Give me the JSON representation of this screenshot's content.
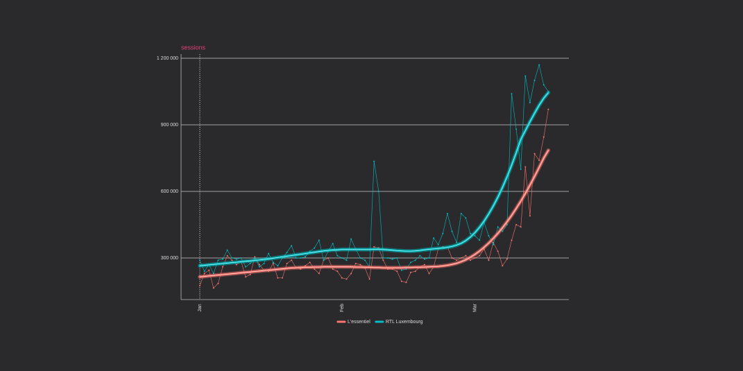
{
  "chart_data": {
    "type": "line",
    "y_label": "sessions",
    "categories": [
      "Jan",
      null,
      null,
      null,
      null,
      null,
      null,
      null,
      null,
      null,
      null,
      null,
      null,
      null,
      null,
      null,
      null,
      null,
      null,
      null,
      null,
      null,
      null,
      null,
      null,
      null,
      null,
      null,
      null,
      null,
      null,
      "Feb",
      null,
      null,
      null,
      null,
      null,
      null,
      null,
      null,
      null,
      null,
      null,
      null,
      null,
      null,
      null,
      null,
      null,
      null,
      null,
      null,
      null,
      null,
      null,
      null,
      null,
      null,
      null,
      null,
      "Mar",
      null,
      null,
      null,
      null,
      null,
      null,
      null,
      null,
      null,
      null,
      null,
      null,
      null,
      null,
      null,
      null
    ],
    "ylim": [
      112500,
      1218750
    ],
    "yticks": [
      {
        "value": 300000,
        "label": "300 000"
      },
      {
        "value": 600000,
        "label": "600 000"
      },
      {
        "value": 900000,
        "label": "900 000"
      },
      {
        "value": 1200000,
        "label": "1 200 000"
      }
    ],
    "grid": true,
    "legend": "bottom",
    "series": [
      {
        "name": "L'essentiel",
        "color": "#f8766d",
        "values": [
          175000,
          230000,
          245000,
          165000,
          185000,
          260000,
          310000,
          290000,
          270000,
          285000,
          215000,
          225000,
          305000,
          270000,
          245000,
          240000,
          275000,
          210000,
          210000,
          275000,
          290000,
          255000,
          250000,
          265000,
          280000,
          250000,
          230000,
          290000,
          300000,
          250000,
          240000,
          210000,
          205000,
          230000,
          275000,
          270000,
          255000,
          205000,
          350000,
          345000,
          290000,
          250000,
          250000,
          240000,
          195000,
          190000,
          235000,
          240000,
          260000,
          270000,
          230000,
          260000,
          340000,
          350000,
          350000,
          300000,
          290000,
          300000,
          310000,
          290000,
          300000,
          310000,
          340000,
          290000,
          370000,
          330000,
          265000,
          295000,
          380000,
          450000,
          440000,
          710000,
          490000,
          770000,
          740000,
          845000,
          970000
        ],
        "trend": [
          215000,
          217000,
          219000,
          221000,
          223000,
          225000,
          227000,
          229000,
          231000,
          233000,
          235000,
          237000,
          239000,
          241000,
          243000,
          245000,
          247000,
          249000,
          251000,
          253000,
          255000,
          256000,
          257000,
          258000,
          258000,
          259000,
          259000,
          260000,
          260000,
          260000,
          260000,
          260000,
          260000,
          260000,
          259000,
          259000,
          258000,
          258000,
          257000,
          257000,
          256000,
          256000,
          256000,
          256000,
          256000,
          257000,
          257000,
          258000,
          258000,
          259000,
          260000,
          261000,
          262000,
          264000,
          267000,
          271000,
          276000,
          283000,
          292000,
          303000,
          316000,
          331000,
          348000,
          367000,
          388000,
          411000,
          436000,
          463000,
          492000,
          523000,
          556000,
          591000,
          628000,
          667000,
          708000,
          750000,
          785000
        ]
      },
      {
        "name": "RTL Luxembourg",
        "color": "#00bfc4",
        "values": [
          290000,
          240000,
          270000,
          230000,
          290000,
          295000,
          335000,
          300000,
          295000,
          300000,
          260000,
          275000,
          300000,
          260000,
          275000,
          320000,
          280000,
          265000,
          300000,
          325000,
          355000,
          300000,
          300000,
          305000,
          330000,
          345000,
          380000,
          290000,
          330000,
          365000,
          310000,
          300000,
          290000,
          385000,
          340000,
          300000,
          290000,
          260000,
          735000,
          600000,
          300000,
          300000,
          295000,
          300000,
          245000,
          250000,
          280000,
          290000,
          310000,
          295000,
          300000,
          390000,
          360000,
          410000,
          500000,
          420000,
          370000,
          500000,
          480000,
          410000,
          400000,
          380000,
          460000,
          400000,
          360000,
          440000,
          420000,
          450000,
          1040000,
          880000,
          700000,
          1120000,
          1000000,
          1100000,
          1170000,
          1080000,
          1050000
        ],
        "trend": [
          265000,
          267000,
          269000,
          271000,
          273000,
          275000,
          277000,
          279000,
          281000,
          283000,
          285000,
          287000,
          289000,
          291000,
          293000,
          296000,
          299000,
          302000,
          305000,
          308000,
          311000,
          314000,
          317000,
          320000,
          323000,
          326000,
          329000,
          332000,
          334000,
          336000,
          337000,
          338000,
          338000,
          338000,
          338000,
          338000,
          338000,
          338000,
          339000,
          339000,
          338000,
          337000,
          335000,
          333000,
          332000,
          331000,
          331000,
          332000,
          334000,
          337000,
          339000,
          341000,
          343000,
          345000,
          348000,
          352000,
          358000,
          366000,
          378000,
          394000,
          414000,
          438000,
          466000,
          498000,
          534000,
          574000,
          618000,
          666000,
          718000,
          774000,
          834000,
          874000,
          914000,
          952000,
          988000,
          1020000,
          1045000
        ]
      }
    ]
  }
}
